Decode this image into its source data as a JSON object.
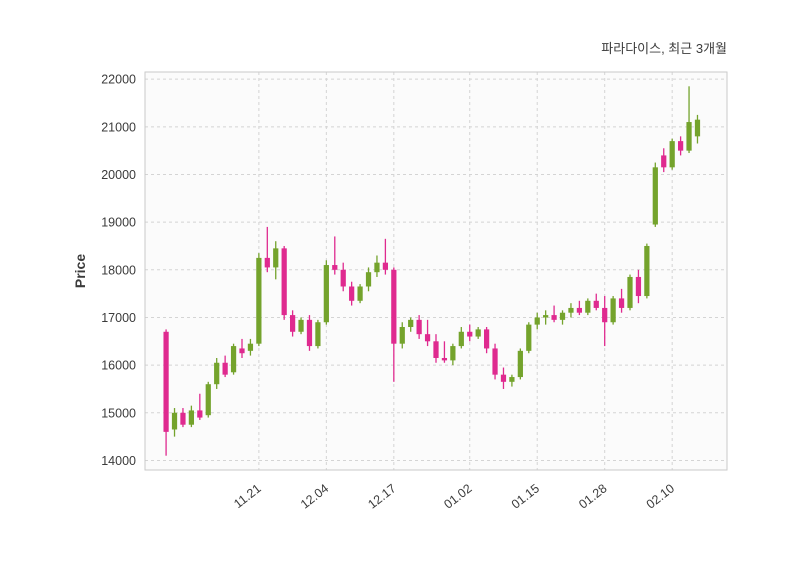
{
  "chart_data": {
    "type": "candlestick",
    "title": "파라다이스, 최근 3개월",
    "ylabel": "Price",
    "ylim": [
      13800,
      22150
    ],
    "y_ticks": [
      14000,
      15000,
      16000,
      17000,
      18000,
      19000,
      20000,
      21000,
      22000
    ],
    "x_tick_labels": [
      "11.21",
      "12.04",
      "12.17",
      "01.02",
      "01.15",
      "01.28",
      "02.10"
    ],
    "x_tick_indices": [
      11,
      19,
      27,
      36,
      44,
      52,
      60
    ],
    "grid": true,
    "legend": "none",
    "up_color": "#74a32c",
    "down_color": "#df2a8f",
    "plot_bg_color": "#fbfbfb",
    "grid_color": "#d4d4d4",
    "border_color": "#c9c9c9",
    "tick_text_color": "#3b3b3b",
    "candles_ohlc": [
      [
        16700,
        16750,
        14100,
        14600
      ],
      [
        14650,
        15100,
        14500,
        15000
      ],
      [
        15000,
        15100,
        14700,
        14750
      ],
      [
        14750,
        15150,
        14700,
        15050
      ],
      [
        15050,
        15400,
        14850,
        14900
      ],
      [
        14950,
        15650,
        14900,
        15600
      ],
      [
        15600,
        16150,
        15500,
        16050
      ],
      [
        16050,
        16200,
        15750,
        15800
      ],
      [
        15850,
        16450,
        15800,
        16400
      ],
      [
        16350,
        16550,
        16150,
        16250
      ],
      [
        16300,
        16550,
        16200,
        16450
      ],
      [
        16450,
        18350,
        16400,
        18250
      ],
      [
        18250,
        18900,
        17950,
        18050
      ],
      [
        18050,
        18600,
        17800,
        18450
      ],
      [
        18450,
        18500,
        16950,
        17050
      ],
      [
        17050,
        17150,
        16600,
        16700
      ],
      [
        16700,
        17000,
        16650,
        16950
      ],
      [
        16950,
        17050,
        16300,
        16400
      ],
      [
        16400,
        16950,
        16350,
        16900
      ],
      [
        16900,
        18200,
        16850,
        18100
      ],
      [
        18100,
        18700,
        17900,
        18000
      ],
      [
        18000,
        18150,
        17550,
        17650
      ],
      [
        17650,
        17750,
        17250,
        17350
      ],
      [
        17350,
        17700,
        17300,
        17650
      ],
      [
        17650,
        18050,
        17550,
        17950
      ],
      [
        17950,
        18300,
        17850,
        18150
      ],
      [
        18150,
        18650,
        17900,
        18000
      ],
      [
        18000,
        18050,
        15650,
        16450
      ],
      [
        16450,
        16900,
        16350,
        16800
      ],
      [
        16800,
        17000,
        16700,
        16950
      ],
      [
        16950,
        17050,
        16550,
        16650
      ],
      [
        16650,
        16950,
        16400,
        16500
      ],
      [
        16500,
        16650,
        16050,
        16150
      ],
      [
        16150,
        16500,
        16050,
        16100
      ],
      [
        16100,
        16450,
        16000,
        16400
      ],
      [
        16400,
        16800,
        16350,
        16700
      ],
      [
        16700,
        16850,
        16500,
        16600
      ],
      [
        16600,
        16800,
        16550,
        16750
      ],
      [
        16750,
        16800,
        16250,
        16350
      ],
      [
        16350,
        16450,
        15700,
        15800
      ],
      [
        15800,
        15950,
        15500,
        15650
      ],
      [
        15650,
        15800,
        15550,
        15750
      ],
      [
        15750,
        16350,
        15700,
        16300
      ],
      [
        16300,
        16900,
        16250,
        16850
      ],
      [
        16850,
        17100,
        16750,
        17000
      ],
      [
        17000,
        17150,
        16850,
        17050
      ],
      [
        17050,
        17250,
        16900,
        16950
      ],
      [
        16950,
        17150,
        16850,
        17100
      ],
      [
        17100,
        17300,
        17000,
        17200
      ],
      [
        17200,
        17350,
        17050,
        17100
      ],
      [
        17100,
        17400,
        17050,
        17350
      ],
      [
        17350,
        17500,
        17150,
        17200
      ],
      [
        17200,
        17450,
        16400,
        16900
      ],
      [
        16900,
        17450,
        16850,
        17400
      ],
      [
        17400,
        17600,
        17100,
        17200
      ],
      [
        17200,
        17900,
        17150,
        17850
      ],
      [
        17850,
        18000,
        17300,
        17450
      ],
      [
        17450,
        18550,
        17400,
        18500
      ],
      [
        18950,
        20250,
        18900,
        20150
      ],
      [
        20400,
        20550,
        20050,
        20150
      ],
      [
        20150,
        20750,
        20100,
        20700
      ],
      [
        20700,
        20800,
        20400,
        20500
      ],
      [
        20500,
        21850,
        20450,
        21100
      ],
      [
        20800,
        21250,
        20650,
        21150
      ]
    ]
  }
}
